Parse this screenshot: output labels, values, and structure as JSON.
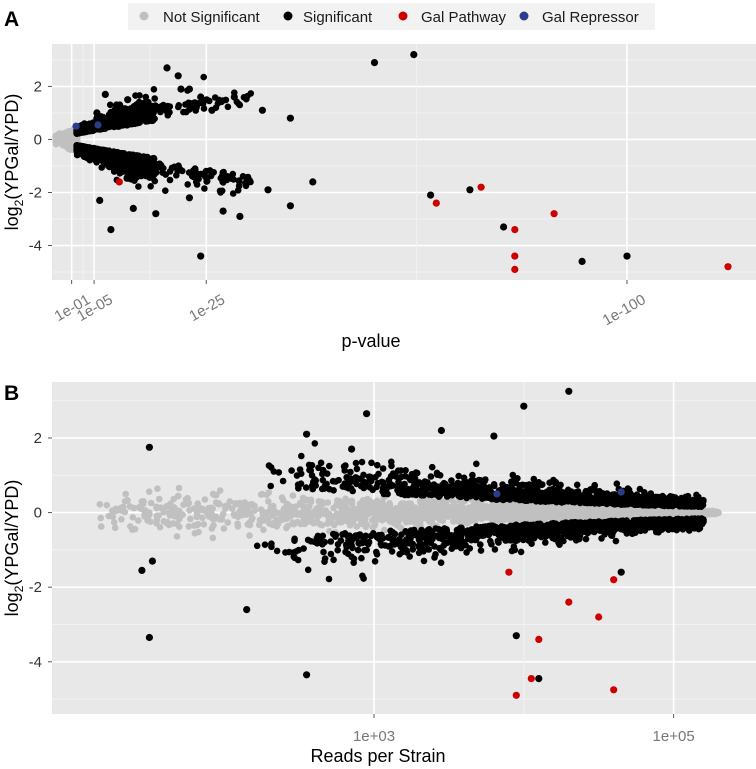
{
  "legend": {
    "items": [
      {
        "label": "Not Significant",
        "color": "#c0c0c0"
      },
      {
        "label": "Significant",
        "color": "#000000"
      },
      {
        "label": "Gal Pathway",
        "color": "#cc0000"
      },
      {
        "label": "Gal Repressor",
        "color": "#2b3c8c"
      }
    ]
  },
  "colors": {
    "panel_bg": "#e8e8e8",
    "grid_major": "#ffffff",
    "grid_minor": "#f2f2f2",
    "not_significant": "#c0c0c0",
    "significant": "#000000",
    "gal_pathway": "#cc0000",
    "gal_repressor": "#2b3c8c"
  },
  "chart_data": [
    {
      "panel": "A",
      "type": "scatter",
      "title": "",
      "xlabel": "p-value",
      "ylabel_main": "log",
      "ylabel_sub": "2",
      "ylabel_rest": "(YPGal/YPD)",
      "x_transform": "-log10(p)",
      "xlim": [
        -2.5,
        123
      ],
      "ylim": [
        -5.3,
        3.6
      ],
      "x_ticks": [
        {
          "value": 1,
          "label": "1e-01"
        },
        {
          "value": 5,
          "label": "1e-05"
        },
        {
          "value": 25,
          "label": "1e-25"
        },
        {
          "value": 100,
          "label": "1e-100"
        }
      ],
      "y_ticks": [
        {
          "value": 2,
          "label": "2"
        },
        {
          "value": 0,
          "label": "0"
        },
        {
          "value": -2,
          "label": "-2"
        },
        {
          "value": -4,
          "label": "-4"
        }
      ],
      "significant_highlights": [
        {
          "x": 5.5,
          "y": 1.0
        },
        {
          "x": 7.0,
          "y": 1.7
        },
        {
          "x": 9.0,
          "y": 1.3
        },
        {
          "x": 11,
          "y": 1.5
        },
        {
          "x": 13,
          "y": 1.2
        },
        {
          "x": 15,
          "y": 1.0
        },
        {
          "x": 18,
          "y": 2.7
        },
        {
          "x": 20,
          "y": 2.4
        },
        {
          "x": 20.5,
          "y": 1.9
        },
        {
          "x": 22,
          "y": 1.9
        },
        {
          "x": 24,
          "y": 1.6
        },
        {
          "x": 26,
          "y": 1.1
        },
        {
          "x": 30,
          "y": 1.6
        },
        {
          "x": 35,
          "y": 1.1
        },
        {
          "x": 40,
          "y": 0.8
        },
        {
          "x": 55,
          "y": 2.9
        },
        {
          "x": 62,
          "y": 3.2
        },
        {
          "x": 6,
          "y": -2.3
        },
        {
          "x": 8,
          "y": -3.4
        },
        {
          "x": 12,
          "y": -2.6
        },
        {
          "x": 16,
          "y": -2.8
        },
        {
          "x": 22,
          "y": -2.2
        },
        {
          "x": 24,
          "y": -4.4
        },
        {
          "x": 28,
          "y": -2.7
        },
        {
          "x": 31,
          "y": -2.9
        },
        {
          "x": 36,
          "y": -1.9
        },
        {
          "x": 40,
          "y": -2.5
        },
        {
          "x": 44,
          "y": -1.6
        },
        {
          "x": 65,
          "y": -2.1
        },
        {
          "x": 72,
          "y": -1.9
        },
        {
          "x": 78,
          "y": -3.3
        },
        {
          "x": 92,
          "y": -4.6
        },
        {
          "x": 100,
          "y": -4.4
        }
      ],
      "gal_pathway": [
        {
          "x": 9.5,
          "y": -1.6
        },
        {
          "x": 66,
          "y": -2.4
        },
        {
          "x": 74,
          "y": -1.8
        },
        {
          "x": 80,
          "y": -3.4
        },
        {
          "x": 87,
          "y": -2.8
        },
        {
          "x": 80,
          "y": -4.4
        },
        {
          "x": 80,
          "y": -4.9
        },
        {
          "x": 118,
          "y": -4.8
        }
      ],
      "gal_repressor": [
        {
          "x": 1.8,
          "y": 0.5
        },
        {
          "x": 5.7,
          "y": 0.55
        }
      ]
    },
    {
      "panel": "B",
      "type": "scatter",
      "title": "",
      "xlabel": "Reads per Strain",
      "ylabel_main": "log",
      "ylabel_sub": "2",
      "ylabel_rest": "(YPGal/YPD)",
      "x_transform": "log10(reads)",
      "xlim": [
        0.85,
        5.55
      ],
      "ylim": [
        -5.4,
        3.5
      ],
      "x_ticks": [
        {
          "value": 3,
          "label": "1e+03"
        },
        {
          "value": 5,
          "label": "1e+05"
        }
      ],
      "y_ticks": [
        {
          "value": 2,
          "label": "2"
        },
        {
          "value": 0,
          "label": "0"
        },
        {
          "value": -2,
          "label": "-2"
        },
        {
          "value": -4,
          "label": "-4"
        }
      ],
      "significant_highlights": [
        {
          "x": 1.5,
          "y": 1.75
        },
        {
          "x": 1.5,
          "y": -3.35
        },
        {
          "x": 1.45,
          "y": -1.55
        },
        {
          "x": 1.52,
          "y": -1.3
        },
        {
          "x": 2.15,
          "y": -2.6
        },
        {
          "x": 2.55,
          "y": -4.35
        },
        {
          "x": 2.55,
          "y": 2.1
        },
        {
          "x": 2.85,
          "y": 1.7
        },
        {
          "x": 2.95,
          "y": 2.65
        },
        {
          "x": 3.45,
          "y": 2.2
        },
        {
          "x": 3.8,
          "y": 2.05
        },
        {
          "x": 4.0,
          "y": 2.85
        },
        {
          "x": 4.3,
          "y": 3.25
        },
        {
          "x": 3.95,
          "y": -3.3
        },
        {
          "x": 4.1,
          "y": -4.45
        },
        {
          "x": 4.65,
          "y": -1.6
        }
      ],
      "gal_pathway": [
        {
          "x": 3.9,
          "y": -1.6
        },
        {
          "x": 4.3,
          "y": -2.4
        },
        {
          "x": 4.6,
          "y": -1.8
        },
        {
          "x": 4.5,
          "y": -2.8
        },
        {
          "x": 4.1,
          "y": -3.4
        },
        {
          "x": 4.05,
          "y": -4.45
        },
        {
          "x": 3.95,
          "y": -4.9
        },
        {
          "x": 4.6,
          "y": -4.75
        }
      ],
      "gal_repressor": [
        {
          "x": 3.82,
          "y": 0.5
        },
        {
          "x": 4.65,
          "y": 0.55
        }
      ]
    }
  ],
  "panels": [
    {
      "label": "A"
    },
    {
      "label": "B"
    }
  ]
}
